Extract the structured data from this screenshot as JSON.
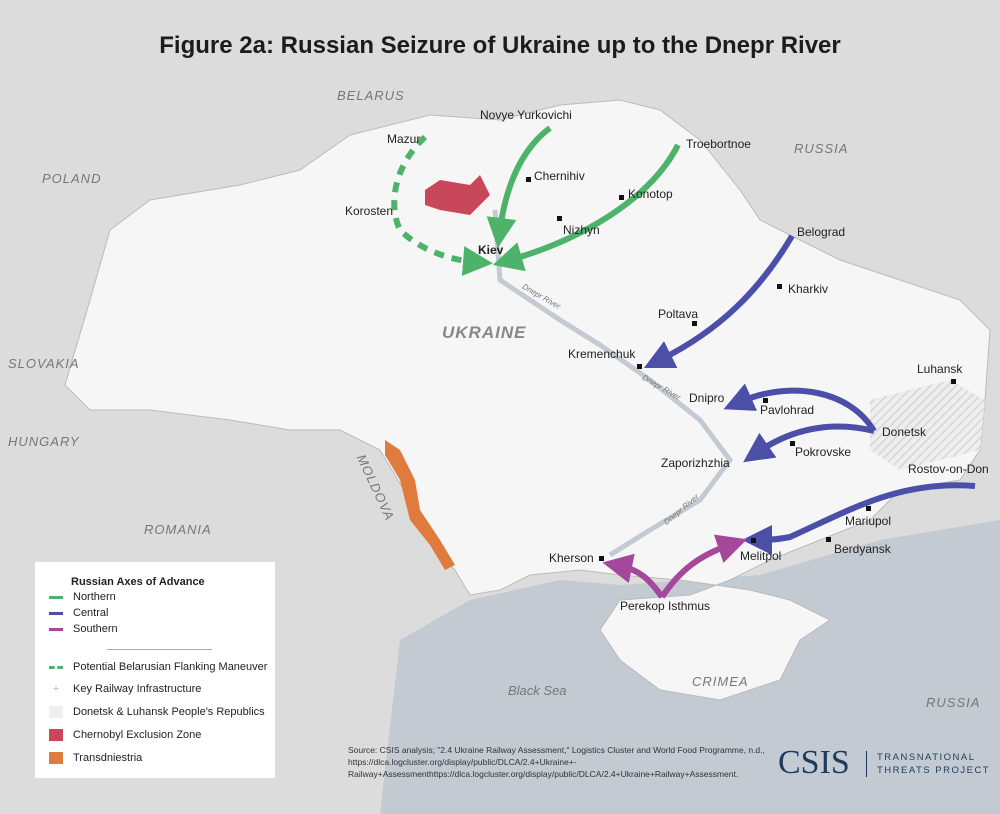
{
  "title": "Figure 2a: Russian Seizure of Ukraine up to the Dnepr River",
  "countries": {
    "belarus": "BELARUS",
    "poland": "POLAND",
    "russia_north": "RUSSIA",
    "russia_south": "RUSSIA",
    "slovakia": "SLOVAKIA",
    "hungary": "HUNGARY",
    "romania": "ROMANIA",
    "moldova": "MOLDOVA",
    "ukraine": "UKRAINE",
    "crimea": "CRIMEA",
    "black_sea": "Black Sea"
  },
  "rivers": {
    "dnepr_1": "Dnepr River",
    "dnepr_2": "Dnepr River",
    "dnepr_3": "Dnepr River"
  },
  "cities": {
    "mazur": "Mazur",
    "novye_yurkovichi": "Novye Yurkovichi",
    "troebortnoe": "Troebortnoe",
    "chernihiv": "Chernihiv",
    "konotop": "Konotop",
    "korosten": "Korosten",
    "nizhyn": "Nizhyn",
    "kiev": "Kiev",
    "belograd": "Belograd",
    "kharkiv": "Kharkiv",
    "poltava": "Poltava",
    "kremenchuk": "Kremenchuk",
    "luhansk": "Luhansk",
    "dnipro": "Dnipro",
    "pavlohrad": "Pavlohrad",
    "donetsk": "Donetsk",
    "pokrovske": "Pokrovske",
    "zaporizhzhia": "Zaporizhzhia",
    "rostov": "Rostov-on-Don",
    "mariupol": "Mariupol",
    "berdyansk": "Berdyansk",
    "melitpol": "Melitpol",
    "kherson": "Kherson",
    "perekop": "Perekop Isthmus"
  },
  "legend": {
    "heading": "Russian Axes of Advance",
    "northern": "Northern",
    "central": "Central",
    "southern": "Southern",
    "flanking": "Potential Belarusian Flanking Maneuver",
    "railway": "Key Railway Infrastructure",
    "dlpr": "Donetsk & Luhansk People's Republics",
    "chernobyl": "Chernobyl Exclusion Zone",
    "transdniestria": "Transdniestria"
  },
  "colors": {
    "northern": "#4db36b",
    "central": "#4b4fa8",
    "southern": "#a5479a",
    "chernobyl": "#c8475a",
    "transdniestria": "#e07b3e",
    "sea": "#c3cad2",
    "ukraine": "#f6f6f6",
    "land": "#dcdcdc"
  },
  "source": {
    "line1": "Source: CSIS analysis; \"2.4 Ukraine Railway Assessment,\" Logistics Cluster and World Food Programme, n.d.,",
    "line2": "https://dlca.logcluster.org/display/public/DLCA/2.4+Ukraine+-",
    "line3": "Railway+Assessmenthttps://dlca.logcluster.org/display/public/DLCA/2.4+Ukraine+Railway+Assessment."
  },
  "brand": {
    "logo": "CSIS",
    "project_line1": "TRANSNATIONAL",
    "project_line2": "THREATS PROJECT"
  }
}
